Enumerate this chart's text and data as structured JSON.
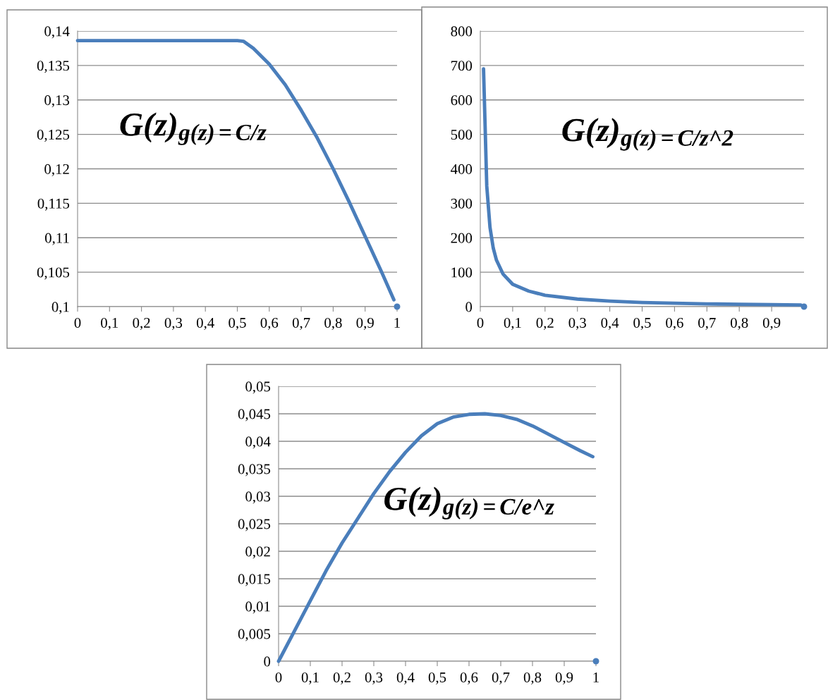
{
  "chart_data": [
    {
      "type": "line",
      "annotations": [
        "G(z)$_{g(z)=C/z}$"
      ],
      "xlim": [
        0,
        1
      ],
      "xticks": [
        {
          "value": 0,
          "label": "0"
        },
        {
          "value": 0.1,
          "label": "0,1"
        },
        {
          "value": 0.2,
          "label": "0,2"
        },
        {
          "value": 0.3,
          "label": "0,3"
        },
        {
          "value": 0.4,
          "label": "0,4"
        },
        {
          "value": 0.5,
          "label": "0,5"
        },
        {
          "value": 0.6,
          "label": "0,6"
        },
        {
          "value": 0.7,
          "label": "0,7"
        },
        {
          "value": 0.8,
          "label": "0,8"
        },
        {
          "value": 0.9,
          "label": "0,9"
        },
        {
          "value": 1,
          "label": "1"
        }
      ],
      "ylim": [
        0.1,
        0.14
      ],
      "yticks": [
        {
          "value": 0.1,
          "label": "0,1"
        },
        {
          "value": 0.105,
          "label": "0,105"
        },
        {
          "value": 0.11,
          "label": "0,11"
        },
        {
          "value": 0.115,
          "label": "0,115"
        },
        {
          "value": 0.12,
          "label": "0,12"
        },
        {
          "value": 0.125,
          "label": "0,125"
        },
        {
          "value": 0.13,
          "label": "0,13"
        },
        {
          "value": 0.135,
          "label": "0,135"
        },
        {
          "value": 0.14,
          "label": "0,14"
        }
      ],
      "grid": "y",
      "legend": false,
      "series": [
        {
          "type": "line",
          "color": "#4a7ebb",
          "marker": "none",
          "x": [
            0,
            0.5,
            0.52,
            0.55,
            0.6,
            0.65,
            0.7,
            0.75,
            0.8,
            0.85,
            0.9,
            0.95,
            0.99
          ],
          "values": [
            0.1386,
            0.1386,
            0.1385,
            0.1375,
            0.1352,
            0.1322,
            0.1285,
            0.1245,
            0.12,
            0.1152,
            0.1102,
            0.1052,
            0.101
          ]
        },
        {
          "type": "scatter",
          "color": "#4a7ebb",
          "marker": "circle",
          "x": [
            1
          ],
          "values": [
            0.1
          ]
        }
      ]
    },
    {
      "type": "line",
      "annotations": [
        "G(z)$_{g(z)=C/z^2}$"
      ],
      "xlim": [
        0,
        1
      ],
      "xticks": [
        {
          "value": 0,
          "label": "0"
        },
        {
          "value": 0.1,
          "label": "0,1"
        },
        {
          "value": 0.2,
          "label": "0,2"
        },
        {
          "value": 0.3,
          "label": "0,3"
        },
        {
          "value": 0.4,
          "label": "0,4"
        },
        {
          "value": 0.5,
          "label": "0,5"
        },
        {
          "value": 0.6,
          "label": "0,6"
        },
        {
          "value": 0.7,
          "label": "0,7"
        },
        {
          "value": 0.8,
          "label": "0,8"
        },
        {
          "value": 0.9,
          "label": "0,9"
        }
      ],
      "ylim": [
        0,
        800
      ],
      "yticks": [
        0,
        100,
        200,
        300,
        400,
        500,
        600,
        700,
        800
      ],
      "grid": "y",
      "legend": false,
      "series": [
        {
          "type": "line",
          "color": "#4a7ebb",
          "marker": "none",
          "x": [
            0.01,
            0.02,
            0.03,
            0.04,
            0.05,
            0.07,
            0.1,
            0.15,
            0.2,
            0.3,
            0.4,
            0.5,
            0.6,
            0.7,
            0.8,
            0.9,
            0.99
          ],
          "values": [
            690,
            350,
            230,
            170,
            135,
            95,
            65,
            45,
            33,
            22,
            16,
            12,
            10,
            8,
            7,
            6,
            5
          ]
        },
        {
          "type": "scatter",
          "color": "#4a7ebb",
          "marker": "circle",
          "x": [
            1
          ],
          "values": [
            0
          ]
        }
      ]
    },
    {
      "type": "line",
      "annotations": [
        "G(z)$_{g(z)=C/e^z}$"
      ],
      "xlim": [
        0,
        1
      ],
      "xticks": [
        {
          "value": 0,
          "label": "0"
        },
        {
          "value": 0.1,
          "label": "0,1"
        },
        {
          "value": 0.2,
          "label": "0,2"
        },
        {
          "value": 0.3,
          "label": "0,3"
        },
        {
          "value": 0.4,
          "label": "0,4"
        },
        {
          "value": 0.5,
          "label": "0,5"
        },
        {
          "value": 0.6,
          "label": "0,6"
        },
        {
          "value": 0.7,
          "label": "0,7"
        },
        {
          "value": 0.8,
          "label": "0,8"
        },
        {
          "value": 0.9,
          "label": "0,9"
        },
        {
          "value": 1,
          "label": "1"
        }
      ],
      "ylim": [
        0,
        0.05
      ],
      "yticks": [
        {
          "value": 0,
          "label": "0"
        },
        {
          "value": 0.005,
          "label": "0,005"
        },
        {
          "value": 0.01,
          "label": "0,01"
        },
        {
          "value": 0.015,
          "label": "0,015"
        },
        {
          "value": 0.02,
          "label": "0,02"
        },
        {
          "value": 0.025,
          "label": "0,025"
        },
        {
          "value": 0.03,
          "label": "0,03"
        },
        {
          "value": 0.035,
          "label": "0,035"
        },
        {
          "value": 0.04,
          "label": "0,04"
        },
        {
          "value": 0.045,
          "label": "0,045"
        },
        {
          "value": 0.05,
          "label": "0,05"
        }
      ],
      "grid": "y",
      "legend": false,
      "series": [
        {
          "type": "line",
          "color": "#4a7ebb",
          "marker": "none",
          "x": [
            0,
            0.05,
            0.1,
            0.15,
            0.2,
            0.25,
            0.3,
            0.35,
            0.4,
            0.45,
            0.5,
            0.55,
            0.6,
            0.65,
            0.7,
            0.75,
            0.8,
            0.85,
            0.9,
            0.95,
            0.99
          ],
          "values": [
            0,
            0.0055,
            0.011,
            0.0165,
            0.0215,
            0.026,
            0.0305,
            0.0345,
            0.038,
            0.041,
            0.0432,
            0.0444,
            0.0449,
            0.045,
            0.0447,
            0.044,
            0.0428,
            0.0413,
            0.0398,
            0.0383,
            0.0372
          ]
        },
        {
          "type": "scatter",
          "color": "#4a7ebb",
          "marker": "circle",
          "x": [
            1
          ],
          "values": [
            0
          ]
        }
      ]
    }
  ]
}
